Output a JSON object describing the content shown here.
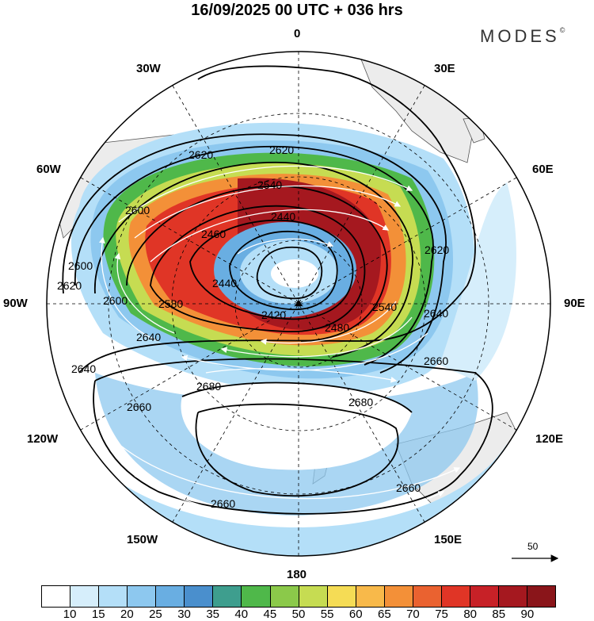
{
  "header": {
    "title": "16/09/2025  00 UTC  + 036 hrs",
    "brand": "MODES"
  },
  "longitude_labels": {
    "top": "0",
    "bottom": "180",
    "left": "90W",
    "right": "90E",
    "ul1": "30W",
    "ul2": "60W",
    "ur1": "30E",
    "ur2": "60E",
    "ll1": "120W",
    "ll2": "150W",
    "lr1": "120E",
    "lr2": "150E"
  },
  "contour_labels": [
    "2620",
    "2620",
    "2540",
    "2600",
    "2440",
    "2460",
    "2620",
    "2600",
    "2620",
    "2600",
    "2580",
    "2420",
    "2440",
    "2480",
    "2540",
    "2640",
    "2640",
    "2640",
    "2660",
    "2680",
    "2680",
    "2660",
    "2660",
    "2660"
  ],
  "wind_reference": {
    "label": "50"
  },
  "colorbar": {
    "colors": [
      "#ffffff",
      "#d6eefb",
      "#b4dff8",
      "#8dc8ef",
      "#69aee2",
      "#4a8fcd",
      "#3e9e8e",
      "#4fb84a",
      "#8bc94a",
      "#c6dc52",
      "#f5dc55",
      "#f8b94a",
      "#f39038",
      "#ea6230",
      "#e03526",
      "#c72127",
      "#a5181f",
      "#8a151a"
    ],
    "ticks": [
      "10",
      "15",
      "20",
      "25",
      "30",
      "35",
      "40",
      "45",
      "50",
      "55",
      "60",
      "65",
      "70",
      "75",
      "80",
      "85",
      "90"
    ]
  }
}
